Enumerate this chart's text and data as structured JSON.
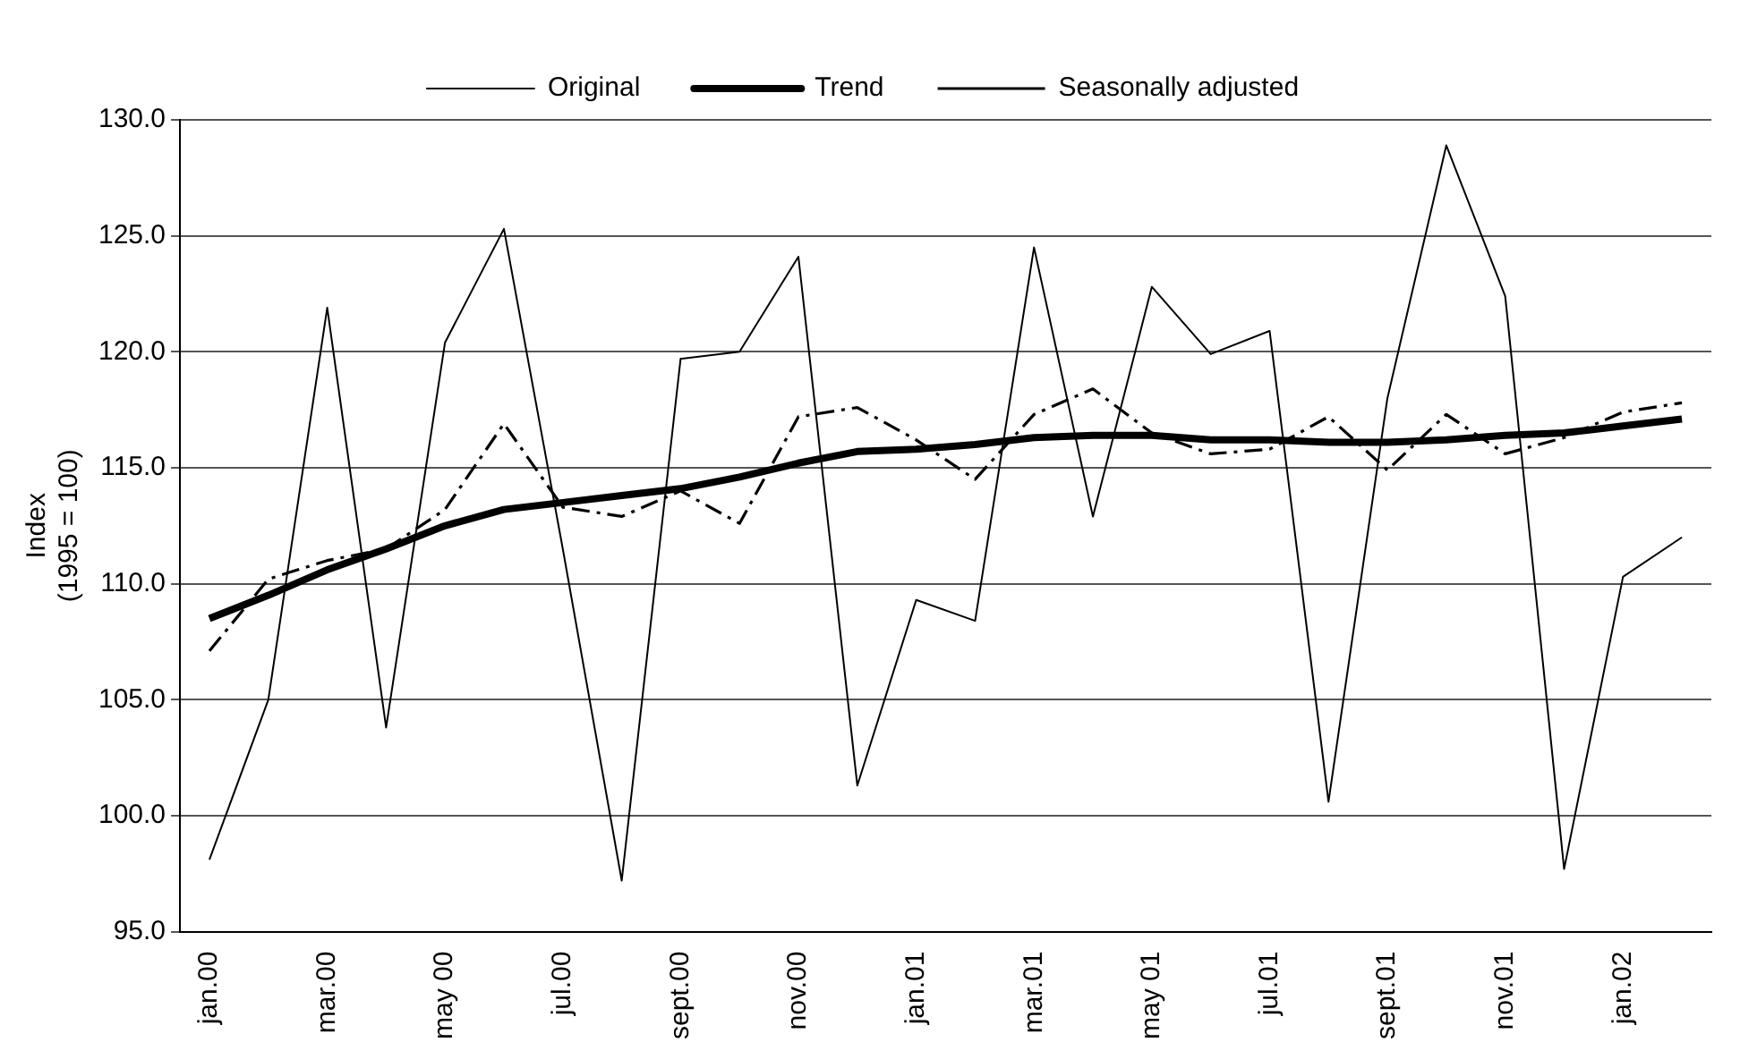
{
  "chart_data": {
    "type": "line",
    "ylabel": "Index\n(1995 = 100)",
    "categories": [
      "jan.00",
      null,
      "mar.00",
      null,
      "may 00",
      null,
      "jul.00",
      null,
      "sept.00",
      null,
      "nov.00",
      null,
      "jan.01",
      null,
      "mar.01",
      null,
      "may 01",
      null,
      "jul.01",
      null,
      "sept.01",
      null,
      "nov.01",
      null,
      "jan.02",
      null
    ],
    "series": [
      {
        "name": "Original",
        "color": "#000000",
        "line_style": "solid",
        "values": [
          98.1,
          105.0,
          121.9,
          103.8,
          120.4,
          125.3,
          111.5,
          97.2,
          119.7,
          120.0,
          124.1,
          101.3,
          109.3,
          108.4,
          124.5,
          112.9,
          122.8,
          119.9,
          120.9,
          100.6,
          118.0,
          128.9,
          122.4,
          97.7,
          110.3,
          112.0
        ]
      },
      {
        "name": "Trend",
        "color": "#000000",
        "line_style": "solid",
        "values": [
          108.5,
          109.5,
          110.6,
          111.5,
          112.5,
          113.2,
          113.5,
          113.8,
          114.1,
          114.6,
          115.2,
          115.7,
          115.8,
          116.0,
          116.3,
          116.4,
          116.4,
          116.2,
          116.2,
          116.1,
          116.1,
          116.2,
          116.4,
          116.5,
          116.8,
          117.1
        ]
      },
      {
        "name": "Seasonally adjusted",
        "color": "#000000",
        "line_style": "dashed",
        "values": [
          107.1,
          110.2,
          111.0,
          111.5,
          113.2,
          116.9,
          113.3,
          112.9,
          114.0,
          112.6,
          117.2,
          117.6,
          116.2,
          114.5,
          117.3,
          118.4,
          116.5,
          115.6,
          115.8,
          117.2,
          114.9,
          117.3,
          115.6,
          116.3,
          117.4,
          117.8
        ]
      }
    ],
    "ylim": [
      95,
      130
    ],
    "yticks": [
      {
        "value": 95,
        "label": "95.0"
      },
      {
        "value": 100,
        "label": "100.0"
      },
      {
        "value": 105,
        "label": "105.0"
      },
      {
        "value": 110,
        "label": "110.0"
      },
      {
        "value": 115,
        "label": "115.0"
      },
      {
        "value": 120,
        "label": "120.0"
      },
      {
        "value": 125,
        "label": "125.0"
      },
      {
        "value": 130,
        "label": "130.0"
      }
    ],
    "grid": "y",
    "legend": "top",
    "marker": "none"
  }
}
